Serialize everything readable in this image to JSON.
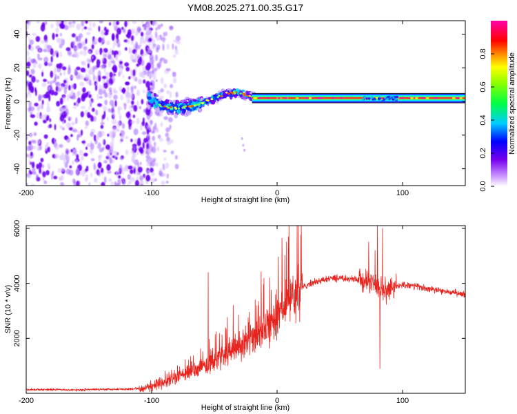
{
  "chart_data": [
    {
      "type": "heatmap",
      "title": "YM08.2025.271.00.35.G17",
      "xlabel": "Height of straight line (km)",
      "ylabel": "Frequency (Hz)",
      "xlim": [
        -200,
        150
      ],
      "ylim": [
        -50,
        48
      ],
      "xticks": [
        -200,
        -100,
        0,
        100
      ],
      "yticks": [
        -40,
        -20,
        0,
        20,
        40
      ],
      "xtick_labels": [
        "-200",
        "-100",
        "0",
        "100"
      ],
      "ytick_labels": [
        "-40",
        "-20",
        "0",
        "20",
        "40"
      ],
      "colorbar": {
        "label": "Normalized spectral amplitude",
        "range": [
          0,
          1
        ],
        "ticks": [
          0.0,
          0.2,
          0.4,
          0.6,
          0.8
        ],
        "tick_labels": [
          "0.0",
          "0.2",
          "0.4",
          "0.6",
          "0.8"
        ],
        "colormap": "rainbow (white → violet → blue → cyan → green → yellow → red → magenta)"
      },
      "features": {
        "noise_region_x": [
          -200,
          -100
        ],
        "signal_onset_km": -100,
        "carrier_track": [
          {
            "x": -100,
            "f": 0
          },
          {
            "x": -90,
            "f": -3
          },
          {
            "x": -80,
            "f": -4
          },
          {
            "x": -70,
            "f": -3
          },
          {
            "x": -60,
            "f": -1
          },
          {
            "x": -50,
            "f": 2
          },
          {
            "x": -40,
            "f": 5
          },
          {
            "x": -30,
            "f": 5
          },
          {
            "x": -20,
            "f": 3
          },
          {
            "x": 0,
            "f": 2
          },
          {
            "x": 50,
            "f": 2
          },
          {
            "x": 150,
            "f": 2
          }
        ],
        "stable_band_f": [
          0,
          4
        ],
        "stable_band_x": [
          -20,
          150
        ]
      }
    },
    {
      "type": "line",
      "xlabel": "Height of straight line (km)",
      "ylabel": "SNR (10 * v/v)",
      "xlim": [
        -200,
        150
      ],
      "ylim": [
        0,
        6100
      ],
      "xticks": [
        -200,
        -100,
        0,
        100
      ],
      "yticks": [
        2000,
        4000,
        6000
      ],
      "xtick_labels": [
        "-200",
        "-100",
        "0",
        "100"
      ],
      "ytick_labels": [
        "2000",
        "4000",
        "6000"
      ],
      "series": [
        {
          "name": "SNR",
          "color": "#e8221c",
          "x": [
            -200,
            -180,
            -160,
            -140,
            -120,
            -110,
            -100,
            -90,
            -80,
            -70,
            -60,
            -50,
            -40,
            -30,
            -20,
            -10,
            0,
            10,
            20,
            30,
            40,
            50,
            60,
            70,
            75,
            80,
            85,
            90,
            100,
            110,
            120,
            130,
            140,
            150
          ],
          "y": [
            130,
            140,
            120,
            150,
            150,
            180,
            250,
            380,
            560,
            800,
            1000,
            1150,
            1400,
            1700,
            2000,
            2300,
            2800,
            3400,
            3850,
            4050,
            4150,
            4200,
            4150,
            4100,
            4050,
            3900,
            3700,
            3800,
            3950,
            3900,
            3800,
            3750,
            3650,
            3600
          ],
          "spikes": [
            {
              "x": -55,
              "y": 4400
            },
            {
              "x": -35,
              "y": 3200
            },
            {
              "x": -6,
              "y": 4200
            },
            {
              "x": 4,
              "y": 4600
            },
            {
              "x": 73,
              "y": 5500
            },
            {
              "x": 78,
              "y": 5200
            },
            {
              "x": 80,
              "y": 6100
            },
            {
              "x": 84,
              "y": 6000
            },
            {
              "x": 82,
              "y": 900
            }
          ]
        }
      ]
    }
  ]
}
